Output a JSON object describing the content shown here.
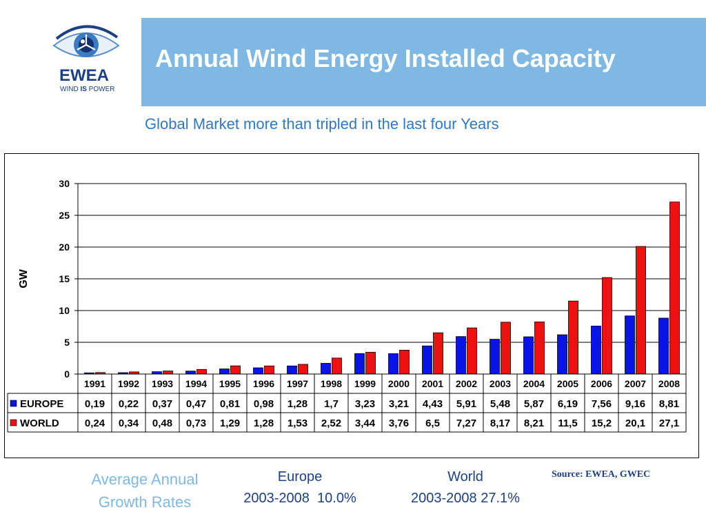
{
  "header": {
    "logo_word": "EWEA",
    "logo_tag_pre": "WIND ",
    "logo_tag_bold": "IS",
    "logo_tag_post": " POWER",
    "title": "Annual Wind Energy Installed Capacity",
    "subtitle": "Global Market more than tripled in the last four Years"
  },
  "colors": {
    "title_bar": "#7fb9e3",
    "europe": "#0a14e6",
    "world": "#ee1111",
    "text_blue": "#1c3f86",
    "subtitle_blue": "#2e78c6"
  },
  "chart_data": {
    "type": "bar",
    "ylabel": "GW",
    "ylim": [
      0,
      30
    ],
    "yticks": [
      0,
      5,
      10,
      15,
      20,
      25,
      30
    ],
    "grid": true,
    "categories": [
      "1991",
      "1992",
      "1993",
      "1994",
      "1995",
      "1996",
      "1997",
      "1998",
      "1999",
      "2000",
      "2001",
      "2002",
      "2003",
      "2004",
      "2005",
      "2006",
      "2007",
      "2008"
    ],
    "series": [
      {
        "name": "EUROPE",
        "color": "#0a14e6",
        "values": [
          0.19,
          0.22,
          0.37,
          0.47,
          0.81,
          0.98,
          1.28,
          1.7,
          3.23,
          3.21,
          4.43,
          5.91,
          5.48,
          5.87,
          6.19,
          7.56,
          9.16,
          8.81
        ],
        "labels": [
          "0,19",
          "0,22",
          "0,37",
          "0,47",
          "0,81",
          "0,98",
          "1,28",
          "1,7",
          "3,23",
          "3,21",
          "4,43",
          "5,91",
          "5,48",
          "5,87",
          "6,19",
          "7,56",
          "9,16",
          "8,81"
        ]
      },
      {
        "name": "WORLD",
        "color": "#ee1111",
        "values": [
          0.24,
          0.34,
          0.48,
          0.73,
          1.29,
          1.28,
          1.53,
          2.52,
          3.44,
          3.76,
          6.5,
          7.27,
          8.17,
          8.21,
          11.5,
          15.2,
          20.1,
          27.1
        ],
        "labels": [
          "0,24",
          "0,34",
          "0,48",
          "0,73",
          "1,29",
          "1,28",
          "1,53",
          "2,52",
          "3,44",
          "3,76",
          "6,5",
          "7,27",
          "8,17",
          "8,21",
          "11,5",
          "15,2",
          "20,1",
          "27,1"
        ]
      }
    ]
  },
  "growth": {
    "label_line1": "Average Annual",
    "label_line2": "Growth Rates",
    "europe_title": "Europe",
    "europe_rate": "2003-2008  10.0%",
    "world_title": "World",
    "world_rate": "2003-2008 27.1%"
  },
  "source": "Source: EWEA, GWEC"
}
